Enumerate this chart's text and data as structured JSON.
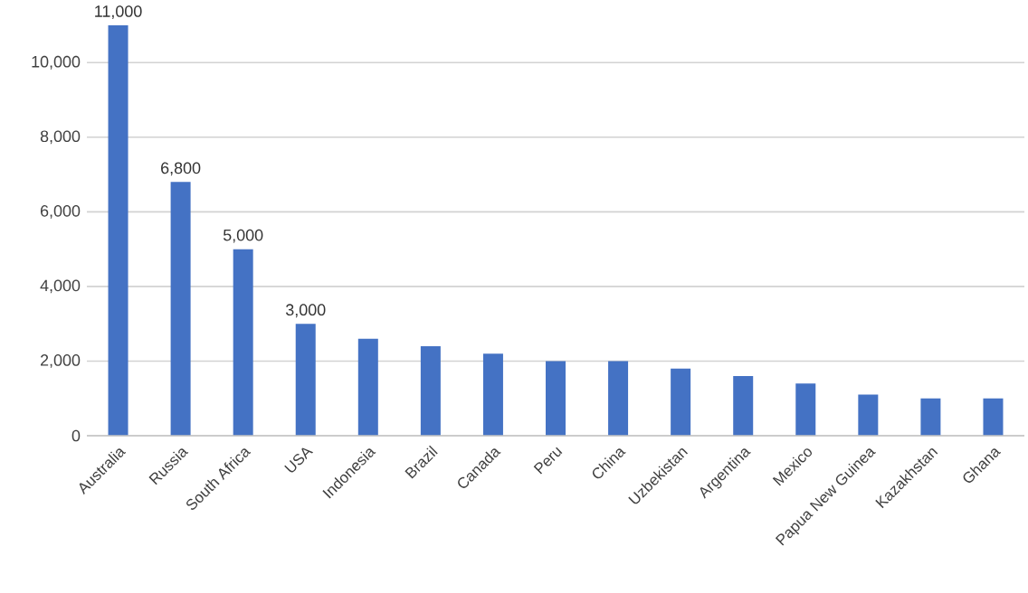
{
  "chart_data": {
    "type": "bar",
    "categories": [
      "Australia",
      "Russia",
      "South Africa",
      "USA",
      "Indonesia",
      "Brazil",
      "Canada",
      "Peru",
      "China",
      "Uzbekistan",
      "Argentina",
      "Mexico",
      "Papua New Guinea",
      "Kazakhstan",
      "Ghana"
    ],
    "values": [
      11000,
      6800,
      5000,
      3000,
      2600,
      2400,
      2200,
      2000,
      2000,
      1800,
      1600,
      1400,
      1100,
      1000,
      1000
    ],
    "value_labels": [
      "11,000",
      "6,800",
      "5,000",
      "3,000",
      null,
      null,
      null,
      null,
      null,
      null,
      null,
      null,
      null,
      null,
      null
    ],
    "color": "#4472c4",
    "ylim": [
      0,
      11000
    ],
    "yticks": [
      0,
      {
        "value": 2000,
        "label": "2,000"
      },
      {
        "value": 4000,
        "label": "4,000"
      },
      {
        "value": 6000,
        "label": "6,000"
      },
      {
        "value": 8000,
        "label": "8,000"
      },
      {
        "value": 10000,
        "label": "10,000"
      }
    ],
    "grid": "y"
  }
}
